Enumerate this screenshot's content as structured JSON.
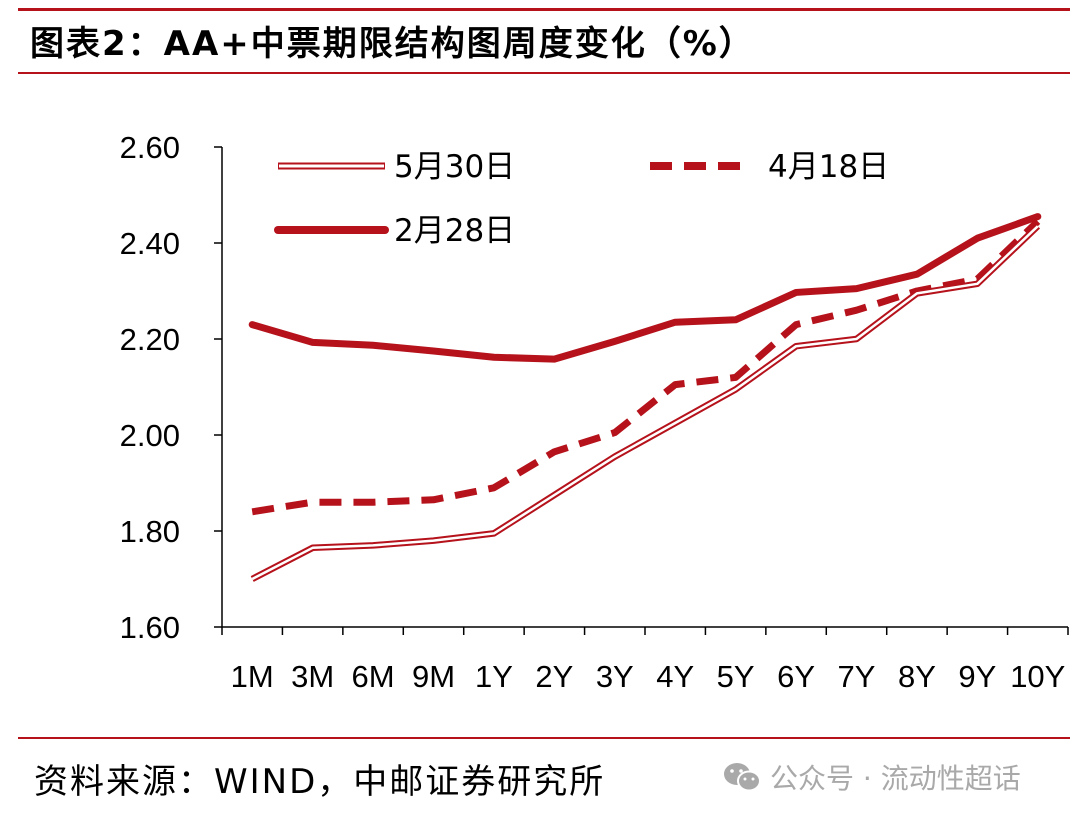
{
  "title": "图表2：AA+中票期限结构图周度变化（%）",
  "source": "资料来源：WIND，中邮证券研究所",
  "watermark": "公众号 · 流动性超话",
  "watermark_icon": "wechat-icon",
  "colors": {
    "accent": "#b5121b",
    "watermark": "#a9a9a9"
  },
  "chart_data": {
    "type": "line",
    "categories": [
      "1M",
      "3M",
      "6M",
      "9M",
      "1Y",
      "2Y",
      "3Y",
      "4Y",
      "5Y",
      "6Y",
      "7Y",
      "8Y",
      "9Y",
      "10Y"
    ],
    "ylim": [
      1.6,
      2.6
    ],
    "yticks": [
      1.6,
      1.8,
      2.0,
      2.2,
      2.4,
      2.6
    ],
    "ytick_labels": [
      "1.60",
      "1.80",
      "2.00",
      "2.20",
      "2.40",
      "2.60"
    ],
    "legend_placement": "top-left",
    "grid": false,
    "series": [
      {
        "name": "5月30日",
        "style": "double",
        "color": "#b5121b",
        "values": [
          1.7,
          1.765,
          1.77,
          1.78,
          1.795,
          1.875,
          1.955,
          2.025,
          2.095,
          2.185,
          2.2,
          2.295,
          2.315,
          2.435
        ]
      },
      {
        "name": "4月18日",
        "style": "dashed",
        "color": "#b5121b",
        "values": [
          1.84,
          1.86,
          1.86,
          1.865,
          1.89,
          1.965,
          2.005,
          2.105,
          2.12,
          2.23,
          2.26,
          2.3,
          2.325,
          2.445
        ]
      },
      {
        "name": "2月28日",
        "style": "solid",
        "color": "#b5121b",
        "values": [
          2.23,
          2.193,
          2.187,
          2.175,
          2.162,
          2.158,
          2.195,
          2.235,
          2.24,
          2.297,
          2.305,
          2.335,
          2.41,
          2.455
        ]
      }
    ]
  }
}
